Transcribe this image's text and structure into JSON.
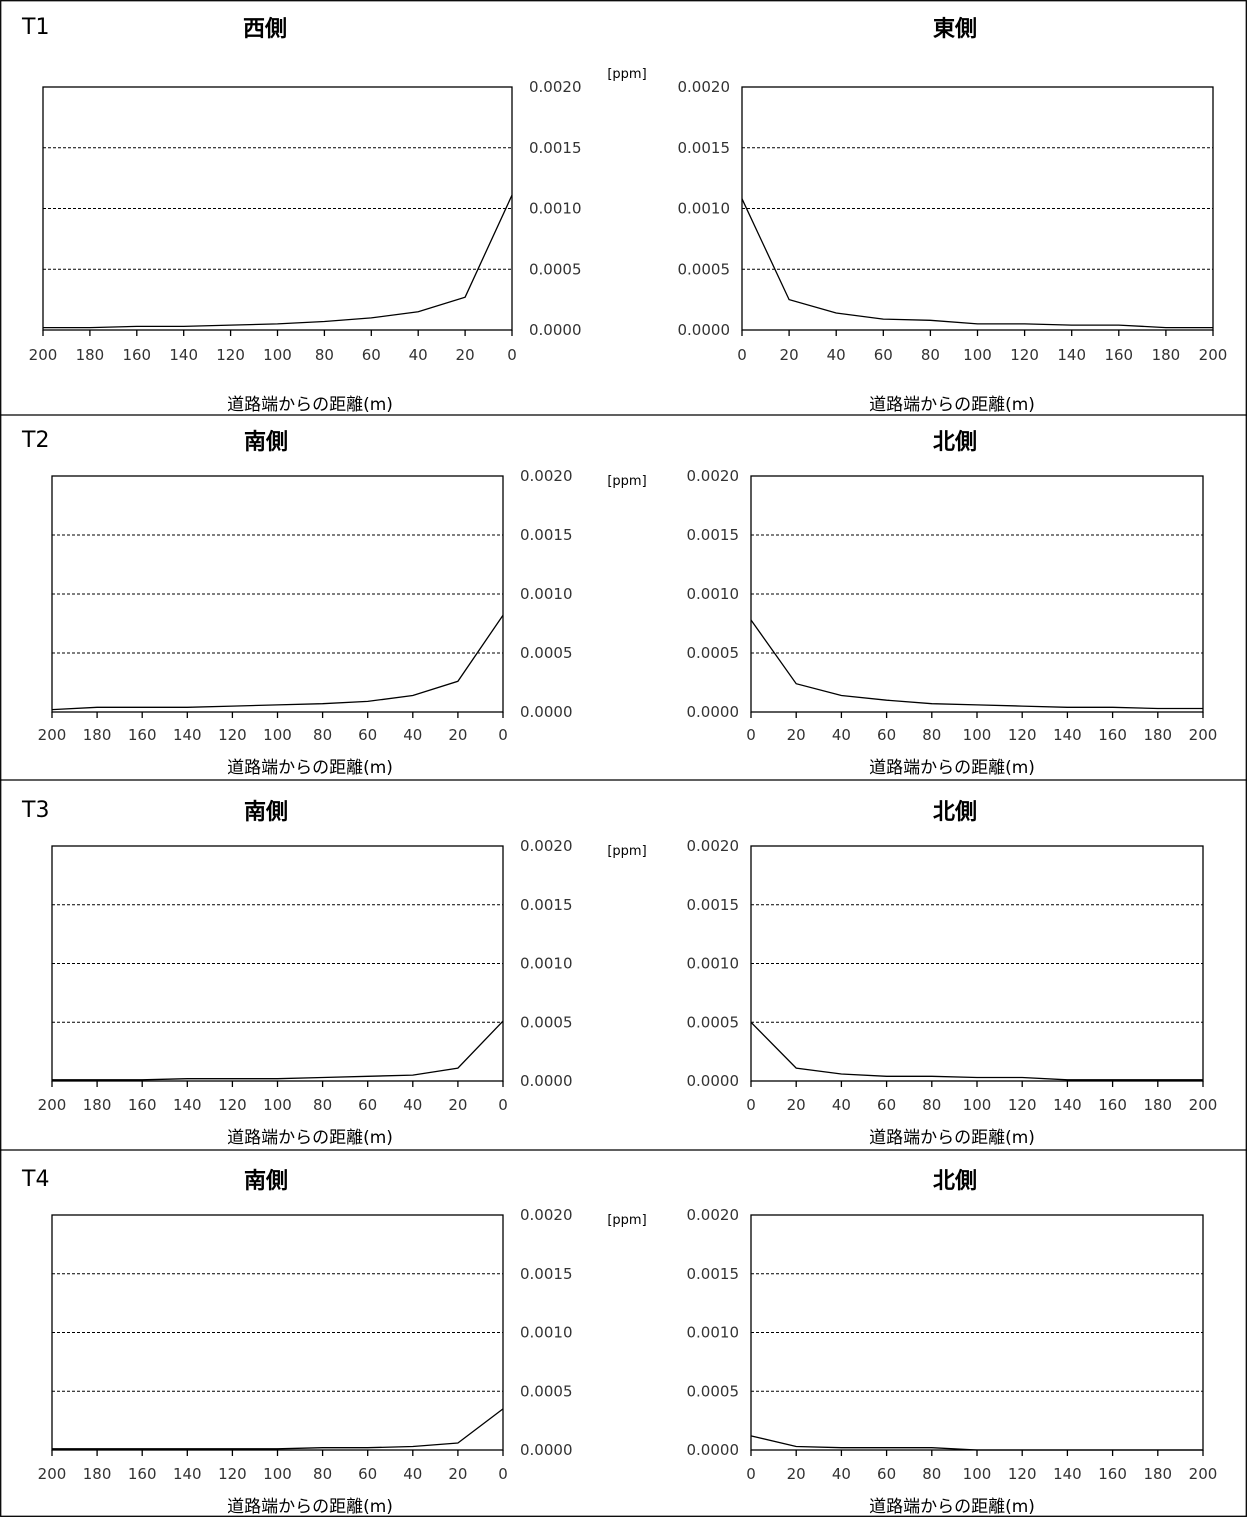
{
  "chart_data": [
    {
      "type": "line",
      "row_label": "T1",
      "title": "西側",
      "unit": "[ppm]",
      "xlabel": "道路端からの距離(m)",
      "x_direction": "descending",
      "x": [
        200,
        180,
        160,
        140,
        120,
        100,
        80,
        60,
        40,
        20,
        0
      ],
      "xticks": [
        "200",
        "180",
        "160",
        "140",
        "120",
        "100",
        "80",
        "60",
        "40",
        "20",
        "0"
      ],
      "ylim": [
        0,
        0.002
      ],
      "yticks": [
        "0.0000",
        "0.0005",
        "0.0010",
        "0.0015",
        "0.0020"
      ],
      "grid": true,
      "series": [
        {
          "values": [
            2e-05,
            2e-05,
            3e-05,
            3e-05,
            4e-05,
            5e-05,
            7e-05,
            0.0001,
            0.00015,
            0.00027,
            0.00111
          ]
        }
      ]
    },
    {
      "type": "line",
      "row_label": "",
      "title": "東側",
      "unit": "",
      "xlabel": "道路端からの距離(m)",
      "x_direction": "ascending",
      "x": [
        0,
        20,
        40,
        60,
        80,
        100,
        120,
        140,
        160,
        180,
        200
      ],
      "xticks": [
        "0",
        "20",
        "40",
        "60",
        "80",
        "100",
        "120",
        "140",
        "160",
        "180",
        "200"
      ],
      "ylim": [
        0,
        0.002
      ],
      "yticks": [
        "0.0000",
        "0.0005",
        "0.0010",
        "0.0015",
        "0.0020"
      ],
      "grid": true,
      "series": [
        {
          "values": [
            0.00108,
            0.00025,
            0.00014,
            9e-05,
            8e-05,
            5e-05,
            5e-05,
            4e-05,
            4e-05,
            2e-05,
            2e-05
          ]
        }
      ]
    },
    {
      "type": "line",
      "row_label": "T2",
      "title": "南側",
      "unit": "[ppm]",
      "xlabel": "道路端からの距離(m)",
      "x_direction": "descending",
      "x": [
        200,
        180,
        160,
        140,
        120,
        100,
        80,
        60,
        40,
        20,
        0
      ],
      "xticks": [
        "200",
        "180",
        "160",
        "140",
        "120",
        "100",
        "80",
        "60",
        "40",
        "20",
        "0"
      ],
      "ylim": [
        0,
        0.002
      ],
      "yticks": [
        "0.0000",
        "0.0005",
        "0.0010",
        "0.0015",
        "0.0020"
      ],
      "grid": true,
      "series": [
        {
          "values": [
            2e-05,
            4e-05,
            4e-05,
            4e-05,
            5e-05,
            6e-05,
            7e-05,
            9e-05,
            0.00014,
            0.00026,
            0.00082
          ]
        }
      ]
    },
    {
      "type": "line",
      "row_label": "",
      "title": "北側",
      "unit": "",
      "xlabel": "道路端からの距離(m)",
      "x_direction": "ascending",
      "x": [
        0,
        20,
        40,
        60,
        80,
        100,
        120,
        140,
        160,
        180,
        200
      ],
      "xticks": [
        "0",
        "20",
        "40",
        "60",
        "80",
        "100",
        "120",
        "140",
        "160",
        "180",
        "200"
      ],
      "ylim": [
        0,
        0.002
      ],
      "yticks": [
        "0.0000",
        "0.0005",
        "0.0010",
        "0.0015",
        "0.0020"
      ],
      "grid": true,
      "series": [
        {
          "values": [
            0.00078,
            0.00024,
            0.00014,
            0.0001,
            7e-05,
            6e-05,
            5e-05,
            4e-05,
            4e-05,
            3e-05,
            3e-05
          ]
        }
      ]
    },
    {
      "type": "line",
      "row_label": "T3",
      "title": "南側",
      "unit": "[ppm]",
      "xlabel": "道路端からの距離(m)",
      "x_direction": "descending",
      "x": [
        200,
        180,
        160,
        140,
        120,
        100,
        80,
        60,
        40,
        20,
        0
      ],
      "xticks": [
        "200",
        "180",
        "160",
        "140",
        "120",
        "100",
        "80",
        "60",
        "40",
        "20",
        "0"
      ],
      "ylim": [
        0,
        0.002
      ],
      "yticks": [
        "0.0000",
        "0.0005",
        "0.0010",
        "0.0015",
        "0.0020"
      ],
      "grid": true,
      "series": [
        {
          "values": [
            1e-05,
            1e-05,
            1e-05,
            2e-05,
            2e-05,
            2e-05,
            3e-05,
            4e-05,
            5e-05,
            0.00011,
            0.00051
          ]
        }
      ]
    },
    {
      "type": "line",
      "row_label": "",
      "title": "北側",
      "unit": "",
      "xlabel": "道路端からの距離(m)",
      "x_direction": "ascending",
      "x": [
        0,
        20,
        40,
        60,
        80,
        100,
        120,
        140,
        160,
        180,
        200
      ],
      "xticks": [
        "0",
        "20",
        "40",
        "60",
        "80",
        "100",
        "120",
        "140",
        "160",
        "180",
        "200"
      ],
      "ylim": [
        0,
        0.002
      ],
      "yticks": [
        "0.0000",
        "0.0005",
        "0.0010",
        "0.0015",
        "0.0020"
      ],
      "grid": true,
      "series": [
        {
          "values": [
            0.0005,
            0.00011,
            6e-05,
            4e-05,
            4e-05,
            3e-05,
            3e-05,
            1e-05,
            1e-05,
            1e-05,
            1e-05
          ]
        }
      ]
    },
    {
      "type": "line",
      "row_label": "T4",
      "title": "南側",
      "unit": "[ppm]",
      "xlabel": "道路端からの距離(m)",
      "x_direction": "descending",
      "x": [
        200,
        180,
        160,
        140,
        120,
        100,
        80,
        60,
        40,
        20,
        0
      ],
      "xticks": [
        "200",
        "180",
        "160",
        "140",
        "120",
        "100",
        "80",
        "60",
        "40",
        "20",
        "0"
      ],
      "ylim": [
        0,
        0.002
      ],
      "yticks": [
        "0.0000",
        "0.0005",
        "0.0010",
        "0.0015",
        "0.0020"
      ],
      "grid": true,
      "series": [
        {
          "values": [
            1e-05,
            1e-05,
            1e-05,
            1e-05,
            1e-05,
            1e-05,
            2e-05,
            2e-05,
            3e-05,
            6e-05,
            0.00035
          ]
        }
      ]
    },
    {
      "type": "line",
      "row_label": "",
      "title": "北側",
      "unit": "",
      "xlabel": "道路端からの距離(m)",
      "x_direction": "ascending",
      "x": [
        0,
        20,
        40,
        60,
        80,
        100,
        120,
        140,
        160,
        180,
        200
      ],
      "xticks": [
        "0",
        "20",
        "40",
        "60",
        "80",
        "100",
        "120",
        "140",
        "160",
        "180",
        "200"
      ],
      "ylim": [
        0,
        0.002
      ],
      "yticks": [
        "0.0000",
        "0.0005",
        "0.0010",
        "0.0015",
        "0.0020"
      ],
      "grid": true,
      "series": [
        {
          "values": [
            0.00012,
            3e-05,
            2e-05,
            2e-05,
            2e-05,
            0.0,
            0.0,
            0.0,
            0.0,
            0.0,
            0.0
          ]
        }
      ]
    }
  ]
}
